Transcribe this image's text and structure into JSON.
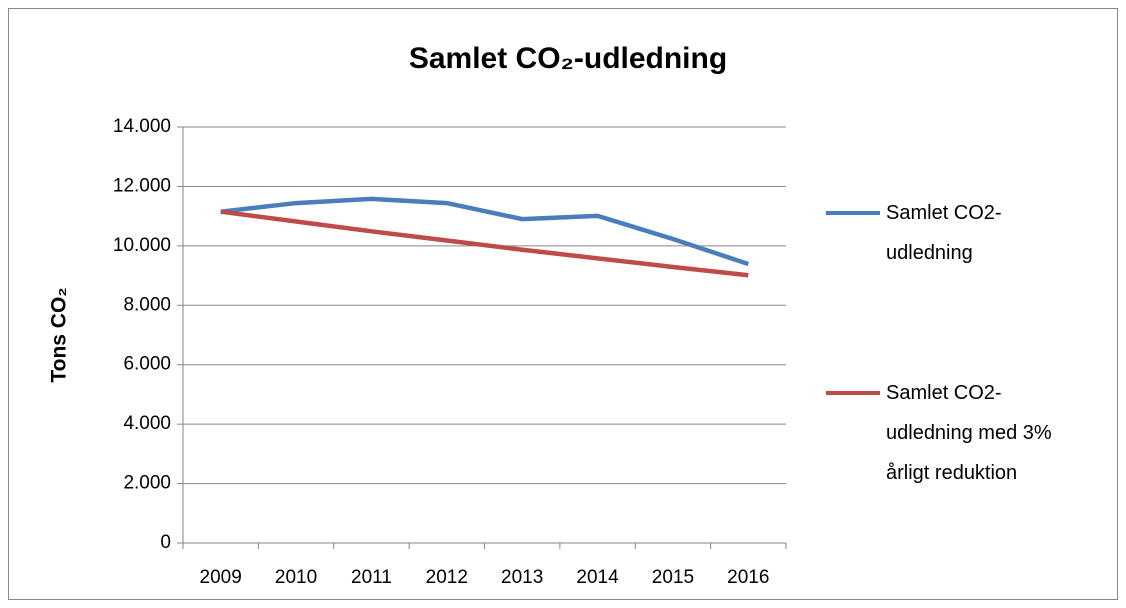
{
  "chart_data": {
    "type": "line",
    "title": "Samlet CO₂-udledning",
    "y_label": "Tons CO₂",
    "categories": [
      "2009",
      "2010",
      "2011",
      "2012",
      "2013",
      "2014",
      "2015",
      "2016"
    ],
    "series": [
      {
        "name": "Samlet CO2-udledning",
        "color": "#4a7ebb",
        "values": [
          11150,
          11440,
          11580,
          11440,
          10900,
          11010,
          10230,
          9390
        ]
      },
      {
        "name": "Samlet CO2-udledning med 3% årligt reduktion",
        "color": "#be4b48",
        "values": [
          11150,
          10820,
          10490,
          10180,
          9870,
          9580,
          9290,
          9010
        ]
      }
    ],
    "ylim": [
      0,
      14000
    ],
    "yticks": [
      0,
      {
        "value": 2000,
        "label": "2.000"
      },
      {
        "value": 4000,
        "label": "4.000"
      },
      {
        "value": 6000,
        "label": "6.000"
      },
      {
        "value": 8000,
        "label": "8.000"
      },
      {
        "value": 10000,
        "label": "10.000"
      },
      {
        "value": 12000,
        "label": "12.000"
      },
      {
        "value": 14000,
        "label": "14.000"
      }
    ],
    "grid": true,
    "legend": "right"
  }
}
